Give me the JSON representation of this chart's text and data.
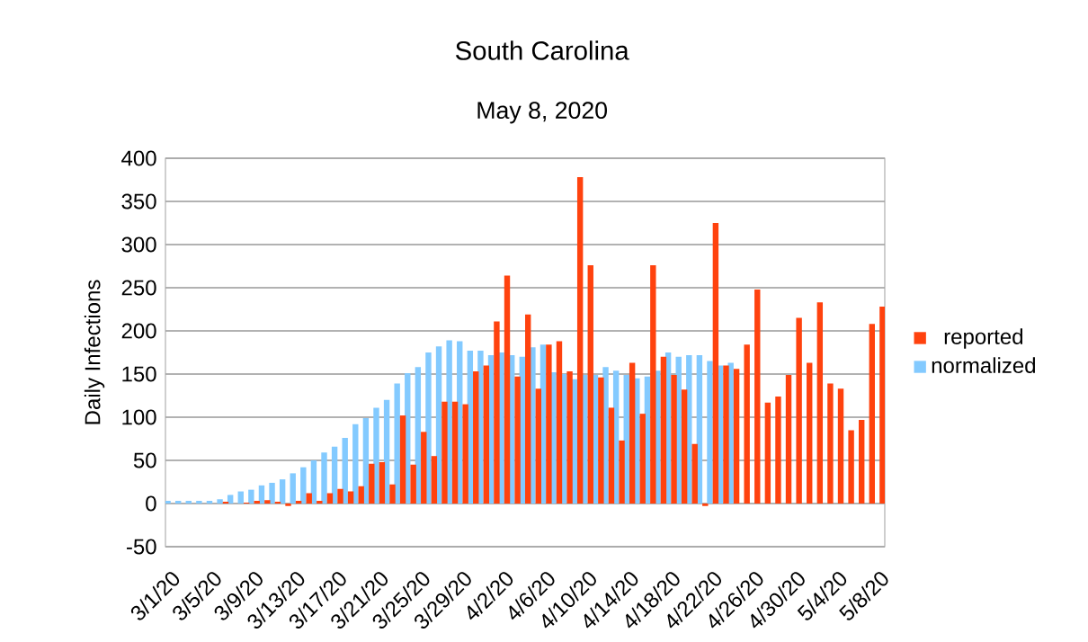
{
  "chart_data": {
    "type": "bar",
    "title": "South Carolina",
    "subtitle": "May 8, 2020",
    "ylabel": "Daily Infections",
    "categories": [
      "3/1/20",
      null,
      null,
      null,
      "3/5/20",
      null,
      null,
      null,
      "3/9/20",
      null,
      null,
      null,
      "3/13/20",
      null,
      null,
      null,
      "3/17/20",
      null,
      null,
      null,
      "3/21/20",
      null,
      null,
      null,
      "3/25/20",
      null,
      null,
      null,
      "3/29/20",
      null,
      null,
      null,
      "4/2/20",
      null,
      null,
      null,
      "4/6/20",
      null,
      null,
      null,
      "4/10/20",
      null,
      null,
      null,
      "4/14/20",
      null,
      null,
      null,
      "4/18/20",
      null,
      null,
      null,
      "4/22/20",
      null,
      null,
      null,
      "4/26/20",
      null,
      null,
      null,
      "4/30/20",
      null,
      null,
      null,
      "5/4/20",
      null,
      null,
      null,
      "5/8/20"
    ],
    "series": [
      {
        "name": "reported",
        "color": "#ff420e",
        "values": [
          0,
          0,
          0,
          0,
          0,
          2,
          0,
          1,
          3,
          4,
          2,
          -3,
          3,
          12,
          3,
          12,
          17,
          14,
          20,
          46,
          48,
          22,
          102,
          45,
          83,
          55,
          118,
          118,
          115,
          153,
          160,
          211,
          264,
          147,
          219,
          133,
          184,
          188,
          153,
          378,
          276,
          146,
          111,
          73,
          163,
          104,
          276,
          170,
          149,
          132,
          69,
          -3,
          325,
          160,
          156,
          184,
          248,
          117,
          124,
          149,
          215,
          163,
          233,
          139,
          133,
          85,
          97,
          208,
          228
        ]
      },
      {
        "name": "normalized",
        "color": "#83caff",
        "values": [
          3,
          3,
          3,
          3,
          3,
          5,
          10,
          14,
          16,
          21,
          24,
          28,
          35,
          42,
          50,
          59,
          66,
          76,
          92,
          99,
          111,
          120,
          139,
          151,
          158,
          175,
          182,
          189,
          188,
          177,
          177,
          172,
          175,
          172,
          170,
          181,
          184,
          152,
          150,
          144,
          149,
          149,
          158,
          154,
          149,
          145,
          147,
          154,
          175,
          170,
          172,
          172,
          165,
          160,
          163,
          null,
          null,
          null,
          null,
          null,
          null,
          null,
          null,
          null,
          null,
          null,
          null,
          null,
          null
        ]
      }
    ],
    "ylim": [
      -50,
      400
    ],
    "yticks": [
      -50,
      0,
      50,
      100,
      150,
      200,
      250,
      300,
      350,
      400
    ],
    "grid": "y",
    "legend": "right"
  }
}
